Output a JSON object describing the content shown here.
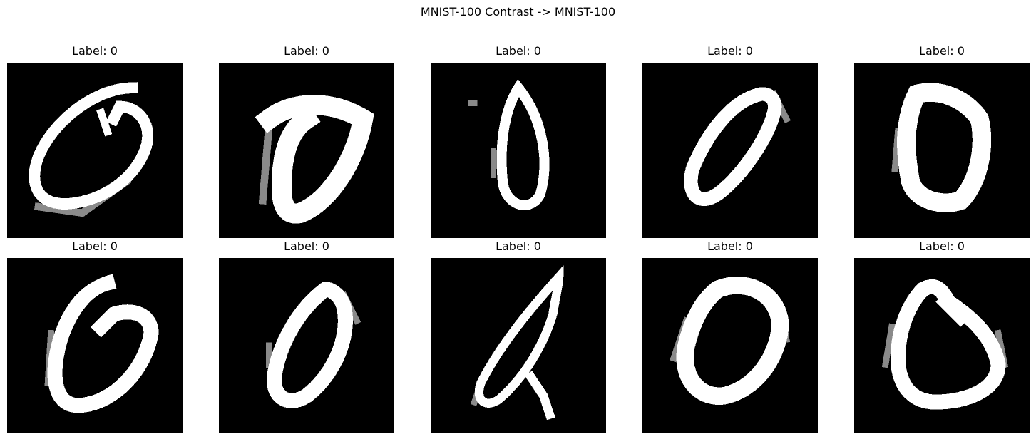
{
  "figure": {
    "title": "MNIST-100 Contrast -> MNIST-100"
  },
  "grid": {
    "rows": 2,
    "columns": 5,
    "panels": [
      {
        "label": "Label: 0",
        "image": "handwritten digit 0, tilted oval with curl at top"
      },
      {
        "label": "Label: 0",
        "image": "handwritten digit 0, thick bold stroke"
      },
      {
        "label": "Label: 0",
        "image": "handwritten digit 0, narrow tall oval"
      },
      {
        "label": "Label: 0",
        "image": "handwritten digit 0, slanted oval"
      },
      {
        "label": "Label: 0",
        "image": "handwritten digit 0, thick rounded shape"
      },
      {
        "label": "Label: 0",
        "image": "handwritten digit 0, oval with hook at top"
      },
      {
        "label": "Label: 0",
        "image": "handwritten digit 0, small slanted oval"
      },
      {
        "label": "Label: 0",
        "image": "handwritten digit 0, thin slanted shape crossing at bottom"
      },
      {
        "label": "Label: 0",
        "image": "handwritten digit 0, wide thick oval"
      },
      {
        "label": "Label: 0",
        "image": "handwritten digit 0, rounded shape with dent at top"
      }
    ]
  },
  "colors": {
    "background": "#ffffff",
    "image_background": "#000000",
    "stroke": "#ffffff"
  }
}
